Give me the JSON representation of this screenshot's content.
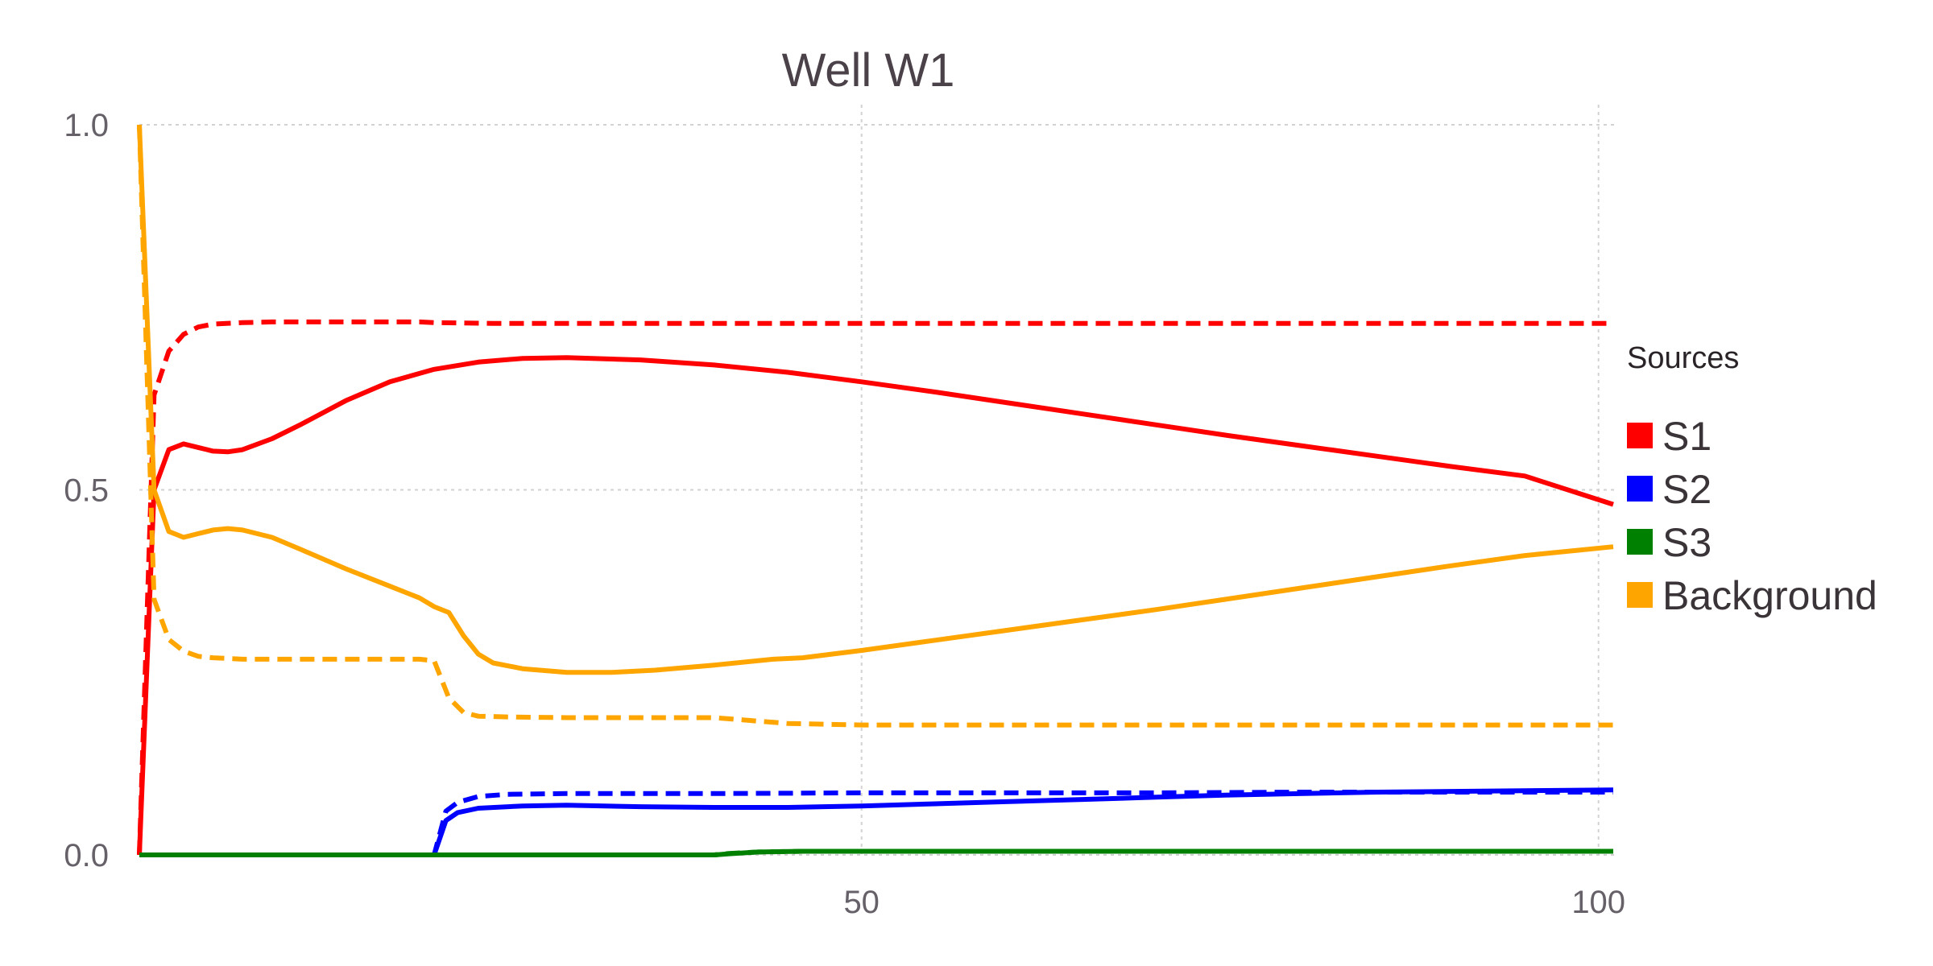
{
  "chart_data": {
    "type": "line",
    "title": "Well W1",
    "xlabel": "",
    "ylabel": "",
    "xlim": [
      1,
      101
    ],
    "ylim": [
      0,
      1
    ],
    "x_ticks": [
      50,
      100
    ],
    "y_ticks": [
      0.0,
      0.5,
      1.0
    ],
    "x_tick_labels": [
      "50",
      "100"
    ],
    "y_tick_labels": [
      "0.0",
      "0.5",
      "1.0"
    ],
    "grid": true,
    "legend": {
      "title": "Sources",
      "position": "right",
      "entries": [
        {
          "label": "S1",
          "color": "#ff0000"
        },
        {
          "label": "S2",
          "color": "#0000ff"
        },
        {
          "label": "S3",
          "color": "#008000"
        },
        {
          "label": "Background",
          "color": "#ffa500"
        }
      ]
    },
    "series": [
      {
        "source": "S1",
        "style": "solid",
        "color": "#ff0000",
        "points": [
          [
            1,
            0
          ],
          [
            2,
            0.5
          ],
          [
            3,
            0.555
          ],
          [
            4,
            0.563
          ],
          [
            5,
            0.558
          ],
          [
            6,
            0.553
          ],
          [
            7,
            0.552
          ],
          [
            8,
            0.555
          ],
          [
            10,
            0.57
          ],
          [
            12,
            0.59
          ],
          [
            15,
            0.622
          ],
          [
            18,
            0.648
          ],
          [
            21,
            0.665
          ],
          [
            24,
            0.675
          ],
          [
            27,
            0.68
          ],
          [
            30,
            0.681
          ],
          [
            35,
            0.678
          ],
          [
            40,
            0.671
          ],
          [
            45,
            0.661
          ],
          [
            50,
            0.648
          ],
          [
            55,
            0.634
          ],
          [
            60,
            0.619
          ],
          [
            65,
            0.604
          ],
          [
            70,
            0.589
          ],
          [
            75,
            0.574
          ],
          [
            80,
            0.56
          ],
          [
            85,
            0.546
          ],
          [
            90,
            0.532
          ],
          [
            95,
            0.519
          ],
          [
            101,
            0.48
          ]
        ]
      },
      {
        "source": "S1",
        "style": "dashed",
        "color": "#ff0000",
        "points": [
          [
            1,
            0
          ],
          [
            2,
            0.63
          ],
          [
            3,
            0.69
          ],
          [
            4,
            0.713
          ],
          [
            5,
            0.723
          ],
          [
            6,
            0.727
          ],
          [
            8,
            0.729
          ],
          [
            10,
            0.73
          ],
          [
            15,
            0.73
          ],
          [
            20,
            0.73
          ],
          [
            21,
            0.729
          ],
          [
            25,
            0.728
          ],
          [
            30,
            0.728
          ],
          [
            40,
            0.728
          ],
          [
            50,
            0.728
          ],
          [
            60,
            0.728
          ],
          [
            70,
            0.728
          ],
          [
            80,
            0.728
          ],
          [
            90,
            0.728
          ],
          [
            101,
            0.728
          ]
        ]
      },
      {
        "source": "S2",
        "style": "solid",
        "color": "#0000ff",
        "points": [
          [
            1,
            0
          ],
          [
            10,
            0
          ],
          [
            20,
            0
          ],
          [
            21,
            0
          ],
          [
            21.8,
            0.047
          ],
          [
            22.6,
            0.058
          ],
          [
            24,
            0.064
          ],
          [
            27,
            0.067
          ],
          [
            30,
            0.068
          ],
          [
            35,
            0.066
          ],
          [
            40,
            0.065
          ],
          [
            45,
            0.065
          ],
          [
            50,
            0.067
          ],
          [
            55,
            0.07
          ],
          [
            60,
            0.073
          ],
          [
            65,
            0.076
          ],
          [
            70,
            0.079
          ],
          [
            75,
            0.082
          ],
          [
            80,
            0.084
          ],
          [
            85,
            0.086
          ],
          [
            90,
            0.087
          ],
          [
            95,
            0.088
          ],
          [
            101,
            0.089
          ]
        ]
      },
      {
        "source": "S2",
        "style": "dashed",
        "color": "#0000ff",
        "points": [
          [
            1,
            0
          ],
          [
            20,
            0
          ],
          [
            21,
            0
          ],
          [
            21.8,
            0.06
          ],
          [
            22.6,
            0.072
          ],
          [
            24,
            0.08
          ],
          [
            26,
            0.083
          ],
          [
            30,
            0.084
          ],
          [
            40,
            0.084
          ],
          [
            50,
            0.085
          ],
          [
            60,
            0.085
          ],
          [
            70,
            0.085
          ],
          [
            80,
            0.086
          ],
          [
            90,
            0.086
          ],
          [
            101,
            0.086
          ]
        ]
      },
      {
        "source": "S3",
        "style": "solid",
        "color": "#008000",
        "points": [
          [
            1,
            0
          ],
          [
            20,
            0
          ],
          [
            30,
            0
          ],
          [
            40,
            0
          ],
          [
            41,
            0.0015
          ],
          [
            43,
            0.004
          ],
          [
            46,
            0.005
          ],
          [
            60,
            0.005
          ],
          [
            80,
            0.005
          ],
          [
            101,
            0.005
          ]
        ]
      },
      {
        "source": "S3",
        "style": "dashed",
        "color": "#008000",
        "points": [
          [
            1,
            0
          ],
          [
            20,
            0
          ],
          [
            30,
            0
          ],
          [
            40,
            0
          ],
          [
            41,
            0.002
          ],
          [
            43,
            0.004
          ],
          [
            46,
            0.005
          ],
          [
            60,
            0.005
          ],
          [
            80,
            0.005
          ],
          [
            101,
            0.005
          ]
        ]
      },
      {
        "source": "Background",
        "style": "solid",
        "color": "#ffa500",
        "points": [
          [
            1,
            1.0
          ],
          [
            2,
            0.5
          ],
          [
            3,
            0.443
          ],
          [
            4,
            0.435
          ],
          [
            5,
            0.44
          ],
          [
            6,
            0.445
          ],
          [
            7,
            0.447
          ],
          [
            8,
            0.445
          ],
          [
            10,
            0.435
          ],
          [
            12,
            0.418
          ],
          [
            15,
            0.392
          ],
          [
            18,
            0.368
          ],
          [
            20,
            0.352
          ],
          [
            21,
            0.34
          ],
          [
            22,
            0.332
          ],
          [
            23,
            0.3
          ],
          [
            24,
            0.275
          ],
          [
            25,
            0.263
          ],
          [
            27,
            0.255
          ],
          [
            30,
            0.25
          ],
          [
            33,
            0.25
          ],
          [
            36,
            0.253
          ],
          [
            40,
            0.26
          ],
          [
            44,
            0.268
          ],
          [
            46,
            0.27
          ],
          [
            50,
            0.28
          ],
          [
            55,
            0.294
          ],
          [
            60,
            0.308
          ],
          [
            65,
            0.322
          ],
          [
            70,
            0.336
          ],
          [
            75,
            0.351
          ],
          [
            80,
            0.366
          ],
          [
            85,
            0.381
          ],
          [
            90,
            0.396
          ],
          [
            95,
            0.41
          ],
          [
            101,
            0.422
          ]
        ]
      },
      {
        "source": "Background",
        "style": "dashed",
        "color": "#ffa500",
        "points": [
          [
            1,
            1.0
          ],
          [
            2,
            0.35
          ],
          [
            3,
            0.295
          ],
          [
            4,
            0.279
          ],
          [
            5,
            0.272
          ],
          [
            6,
            0.27
          ],
          [
            8,
            0.268
          ],
          [
            10,
            0.268
          ],
          [
            15,
            0.268
          ],
          [
            20,
            0.268
          ],
          [
            21,
            0.266
          ],
          [
            22,
            0.215
          ],
          [
            23,
            0.195
          ],
          [
            24,
            0.19
          ],
          [
            26,
            0.189
          ],
          [
            30,
            0.188
          ],
          [
            40,
            0.188
          ],
          [
            45,
            0.18
          ],
          [
            50,
            0.178
          ],
          [
            60,
            0.178
          ],
          [
            70,
            0.178
          ],
          [
            80,
            0.178
          ],
          [
            90,
            0.178
          ],
          [
            101,
            0.178
          ]
        ]
      }
    ]
  }
}
